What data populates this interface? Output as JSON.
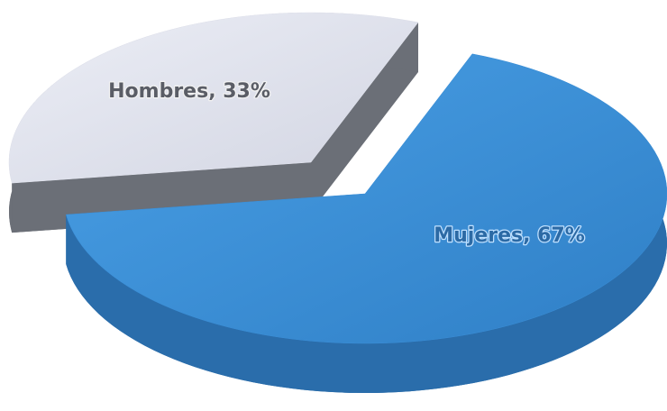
{
  "chart_data": {
    "type": "pie",
    "values": [
      33,
      67
    ],
    "value_labels": [
      "Hombres, 33%",
      "Mujeres, 67%"
    ],
    "colors": [
      "#e2e4ee",
      "#3b8fd8"
    ]
  }
}
